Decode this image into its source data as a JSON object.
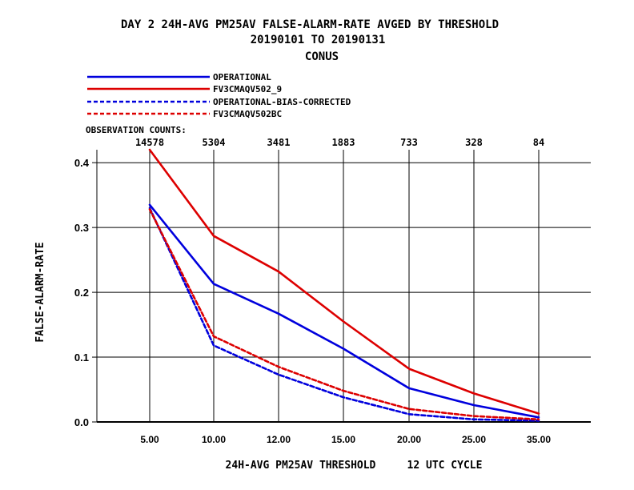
{
  "chart_data": {
    "type": "line",
    "title": "DAY 2   24H-AVG PM25AV FALSE-ALARM-RATE   AVGED BY THRESHOLD",
    "subtitle_dates": "20190101 TO 20190131",
    "subtitle_region": "CONUS",
    "xlabel": "24H-AVG PM25AV THRESHOLD     12 UTC CYCLE",
    "ylabel": "FALSE-ALARM-RATE",
    "ylim": [
      0,
      0.42
    ],
    "yticks": [
      "0.0",
      "0.1",
      "0.2",
      "0.3",
      "0.4"
    ],
    "ytick_values": [
      0,
      0.1,
      0.2,
      0.3,
      0.4
    ],
    "categories": [
      "5.00",
      "10.00",
      "12.00",
      "15.00",
      "20.00",
      "25.00",
      "35.00"
    ],
    "obs_counts_label": "OBSERVATION COUNTS:",
    "obs_counts": [
      "14578",
      "5304",
      "3481",
      "1883",
      "733",
      "328",
      "84"
    ],
    "grid": "horizontal",
    "series": [
      {
        "name": "OPERATIONAL",
        "color": "#0000dd",
        "dash": "solid",
        "values": [
          0.335,
          0.213,
          0.167,
          0.113,
          0.052,
          0.026,
          0.007
        ]
      },
      {
        "name": "FV3CMAQV502_9",
        "color": "#dd0000",
        "dash": "solid",
        "values": [
          0.42,
          0.287,
          0.232,
          0.155,
          0.082,
          0.044,
          0.013
        ]
      },
      {
        "name": "OPERATIONAL-BIAS-CORRECTED",
        "color": "#0000dd",
        "dash": "dashed",
        "values": [
          0.33,
          0.118,
          0.073,
          0.038,
          0.012,
          0.004,
          0.002
        ]
      },
      {
        "name": "FV3CMAQV502BC",
        "color": "#dd0000",
        "dash": "dashed",
        "values": [
          0.328,
          0.132,
          0.085,
          0.048,
          0.02,
          0.009,
          0.004
        ]
      }
    ]
  }
}
